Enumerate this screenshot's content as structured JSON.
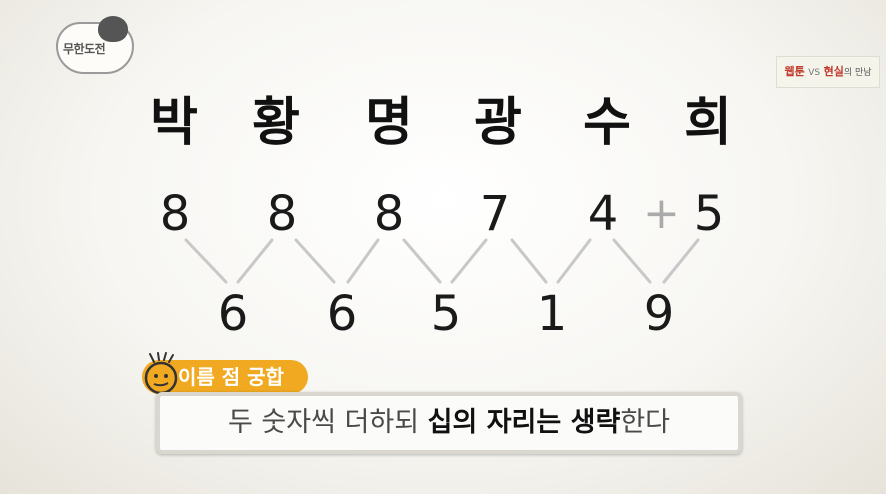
{
  "logo": {
    "text": "무한도전"
  },
  "watermark": {
    "part1": "웹툰",
    "vs": "VS",
    "part2": "현실",
    "part3": "의 만남"
  },
  "names": [
    "박",
    "황",
    "명",
    "광",
    "수",
    "희"
  ],
  "row1": [
    "8",
    "8",
    "8",
    "7",
    "4",
    "5"
  ],
  "plus": "+",
  "row2": [
    "6",
    "6",
    "5",
    "1",
    "9"
  ],
  "tag": {
    "label": "이름 점 궁합"
  },
  "caption": {
    "part1": "두 숫자씩 더하되 ",
    "bold1": "십의 자리는 생략",
    "part2": "한다"
  },
  "colors": {
    "tag": "#f0a920",
    "watermark_accent": "#c0392b"
  }
}
